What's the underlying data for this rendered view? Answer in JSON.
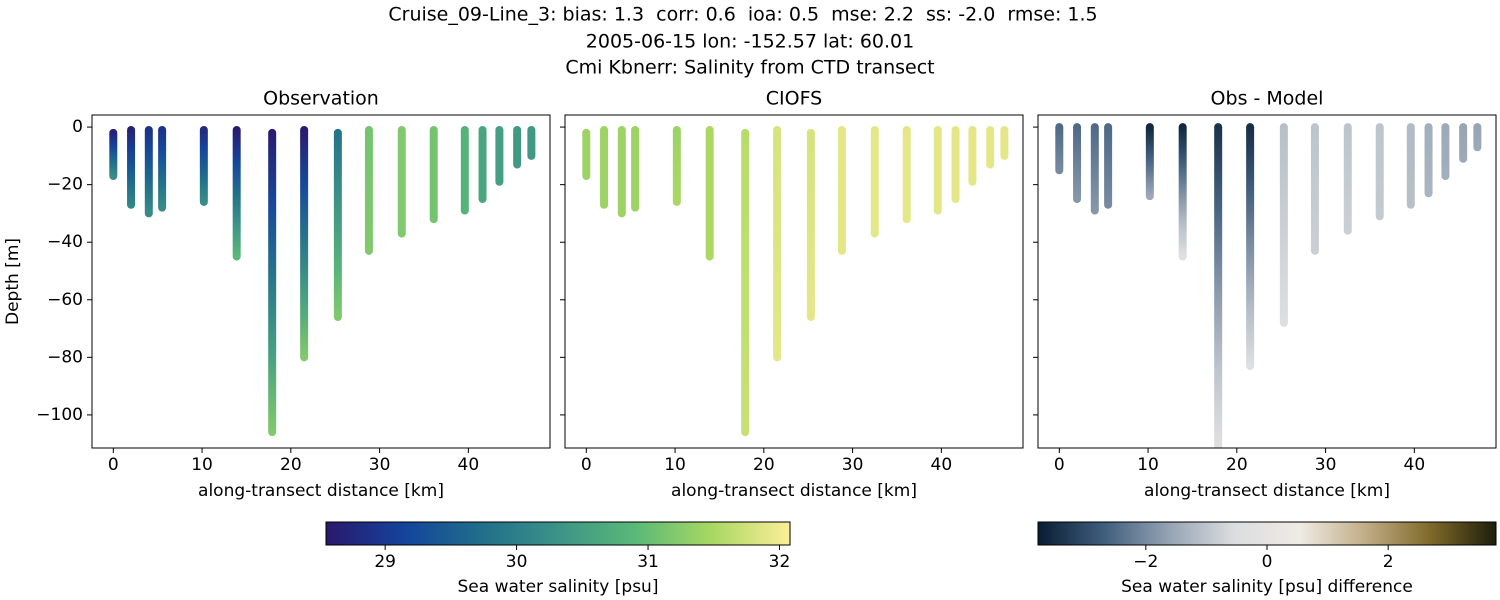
{
  "title_lines": [
    "Cruise_09-Line_3: bias: 1.3  corr: 0.6  ioa: 0.5  mse: 2.2  ss: -2.0  rmse: 1.5",
    "2005-06-15 lon: -152.57 lat: 60.01",
    "Cmi Kbnerr: Salinity from CTD transect"
  ],
  "chart_data": [
    {
      "type": "profile",
      "title": "Observation",
      "xlabel": "along-transect distance [km]",
      "ylabel": "Depth [m]",
      "x": [
        0,
        2,
        4,
        5.5,
        10.2,
        13.9,
        17.9,
        21.5,
        25.3,
        28.8,
        32.5,
        36.1,
        39.6,
        41.6,
        43.5,
        45.5,
        47.1
      ],
      "depth_top": [
        -2,
        -1,
        -1,
        -1,
        -1,
        -1,
        -2,
        -1,
        -2,
        -1,
        -1,
        -1,
        -1,
        -1,
        -1,
        -1,
        -1
      ],
      "depth_bottom": [
        -17,
        -27,
        -30,
        -28,
        -26,
        -45,
        -106,
        -80,
        -66,
        -43,
        -37,
        -32,
        -29,
        -25,
        -19,
        -13,
        -10
      ],
      "value_top": [
        28.7,
        28.7,
        28.9,
        28.9,
        28.8,
        28.6,
        28.6,
        28.6,
        29.8,
        31.1,
        31.2,
        31.1,
        30.8,
        30.6,
        30.5,
        30.4,
        30.4
      ],
      "value_bottom": [
        30.2,
        30.1,
        30.2,
        30.2,
        30.2,
        30.9,
        31.2,
        31.2,
        31.2,
        31.2,
        31.2,
        31.1,
        30.8,
        30.6,
        30.5,
        30.4,
        30.4
      ],
      "xlim": [
        -2.4,
        49.2
      ],
      "xticks": [
        0,
        10,
        20,
        30,
        40
      ],
      "ylim": [
        -111.5,
        4.2
      ],
      "yticks": [
        {
          "value": -100,
          "label": "−100"
        },
        {
          "value": -80,
          "label": "−80"
        },
        {
          "value": -60,
          "label": "−60"
        },
        {
          "value": -40,
          "label": "−40"
        },
        {
          "value": -20,
          "label": "−20"
        },
        0
      ],
      "show_ytick_labels": true,
      "colorbar": 0
    },
    {
      "type": "profile",
      "title": "CIOFS",
      "xlabel": "along-transect distance [km]",
      "x": [
        0,
        2,
        4,
        5.5,
        10.2,
        13.9,
        17.9,
        21.5,
        25.3,
        28.8,
        32.5,
        36.1,
        39.6,
        41.6,
        43.5,
        45.5,
        47.1
      ],
      "depth_top": [
        -2,
        -1,
        -1,
        -1,
        -1,
        -1,
        -2,
        -1,
        -2,
        -1,
        -1,
        -1,
        -1,
        -1,
        -1,
        -1,
        -1
      ],
      "depth_bottom": [
        -17,
        -27,
        -30,
        -28,
        -26,
        -45,
        -106,
        -80,
        -66,
        -43,
        -37,
        -32,
        -29,
        -25,
        -19,
        -13,
        -10
      ],
      "value_top": [
        31.4,
        31.4,
        31.4,
        31.4,
        31.4,
        31.5,
        31.6,
        31.8,
        31.8,
        31.9,
        31.9,
        31.9,
        31.9,
        31.9,
        31.9,
        31.9,
        31.9
      ],
      "value_bottom": [
        31.4,
        31.4,
        31.4,
        31.4,
        31.5,
        31.5,
        31.7,
        31.9,
        31.9,
        31.9,
        31.9,
        31.9,
        31.9,
        31.9,
        31.9,
        31.9,
        31.9
      ],
      "xlim": [
        -2.4,
        49.2
      ],
      "xticks": [
        0,
        10,
        20,
        30,
        40
      ],
      "ylim": [
        -111.5,
        4.2
      ],
      "yticks": [
        -100,
        -80,
        -60,
        -40,
        -20,
        0
      ],
      "show_ytick_labels": false,
      "colorbar": 0
    },
    {
      "type": "profile",
      "title": "Obs - Model",
      "xlabel": "along-transect distance [km]",
      "x": [
        0,
        2,
        4,
        5.5,
        10.2,
        13.9,
        17.9,
        21.5,
        25.3,
        28.8,
        32.5,
        36.1,
        39.6,
        41.6,
        43.5,
        45.5,
        47.1
      ],
      "depth_top": [
        0,
        0,
        0,
        0,
        0,
        0,
        0,
        0,
        0,
        0,
        0,
        0,
        0,
        0,
        0,
        0,
        0
      ],
      "depth_bottom": [
        -15,
        -25,
        -29,
        -27,
        -24,
        -45,
        -112,
        -83,
        -68,
        -43,
        -36,
        -31,
        -27,
        -23,
        -17,
        -11,
        -7
      ],
      "value_top": [
        -2.5,
        -2.5,
        -2.5,
        -2.5,
        -3.6,
        -3.6,
        -3.4,
        -3.5,
        -1.1,
        -1.0,
        -1.0,
        -1.0,
        -1.2,
        -1.4,
        -1.5,
        -1.6,
        -1.6
      ],
      "value_bottom": [
        -2.0,
        -1.8,
        -1.8,
        -2.0,
        -1.5,
        -0.3,
        -0.2,
        -0.4,
        -0.5,
        -0.8,
        -0.8,
        -0.9,
        -1.1,
        -1.3,
        -1.4,
        -1.5,
        -1.5
      ],
      "xlim": [
        -2.4,
        49.2
      ],
      "xticks": [
        0,
        10,
        20,
        30,
        40
      ],
      "ylim": [
        -111.5,
        4.2
      ],
      "yticks": [
        -100,
        -80,
        -60,
        -40,
        -20,
        0
      ],
      "show_ytick_labels": false,
      "colorbar": 1
    }
  ],
  "colorbars": [
    {
      "label": "Sea water salinity [psu]",
      "clim": [
        28.55,
        32.08
      ],
      "ticks": [
        29,
        30,
        31,
        32
      ],
      "colors": [
        "#2a186c",
        "#14439c",
        "#206e8b",
        "#3c9387",
        "#5ab978",
        "#a9d862",
        "#fdee99"
      ]
    },
    {
      "label": "Sea water salinity [psu] difference",
      "clim": [
        -3.78,
        3.78
      ],
      "ticks": [
        {
          "value": -2,
          "label": "−2"
        },
        0,
        2
      ],
      "colors": [
        "#081d33",
        "#3f5d7d",
        "#95a3b3",
        "#dcdde0",
        "#efebe4",
        "#c1ad87",
        "#7f6929",
        "#1d1e0b"
      ]
    }
  ]
}
